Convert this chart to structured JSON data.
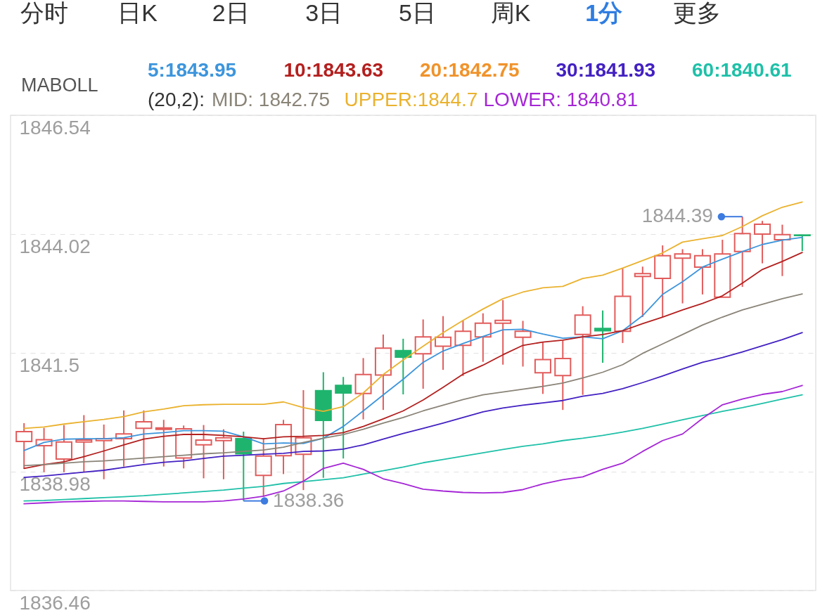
{
  "chart_data": {
    "type": "candlestick",
    "categories": [
      null,
      null,
      null,
      null,
      null,
      null,
      null,
      null,
      null,
      null,
      null,
      null,
      null,
      null,
      null,
      null,
      null,
      null,
      null,
      null,
      null,
      null,
      null,
      null,
      null,
      null,
      null,
      null,
      null,
      null,
      null,
      null,
      null,
      null,
      null,
      null,
      null,
      null,
      null,
      null
    ],
    "ohlc": [
      [
        1839.62,
        1840.01,
        1839.05,
        1839.83
      ],
      [
        1839.53,
        1839.91,
        1838.97,
        1839.66
      ],
      [
        1839.25,
        1839.97,
        1838.97,
        1839.61
      ],
      [
        1839.61,
        1840.18,
        1838.97,
        1839.65
      ],
      [
        1839.64,
        1839.98,
        1838.82,
        1839.68
      ],
      [
        1839.68,
        1840.28,
        1839.09,
        1839.78
      ],
      [
        1839.9,
        1840.28,
        1839.16,
        1840.04
      ],
      [
        1839.88,
        1840.08,
        1839.09,
        1839.91
      ],
      [
        1839.27,
        1839.96,
        1839.05,
        1839.89
      ],
      [
        1839.55,
        1839.97,
        1838.84,
        1839.65
      ],
      [
        1839.64,
        1839.88,
        1838.82,
        1839.7
      ],
      [
        1839.68,
        1839.83,
        1838.36,
        1839.36
      ],
      [
        1838.9,
        1839.69,
        1838.45,
        1839.31
      ],
      [
        1839.32,
        1840.08,
        1838.93,
        1839.98
      ],
      [
        1839.35,
        1840.71,
        1838.59,
        1839.7
      ],
      [
        1840.7,
        1841.09,
        1838.85,
        1840.07
      ],
      [
        1840.81,
        1840.99,
        1839.26,
        1840.65
      ],
      [
        1840.64,
        1841.39,
        1840.09,
        1841.04
      ],
      [
        1841.03,
        1841.89,
        1840.29,
        1841.6
      ],
      [
        1841.55,
        1841.8,
        1840.62,
        1841.41
      ],
      [
        1841.48,
        1842.21,
        1840.74,
        1841.84
      ],
      [
        1841.64,
        1842.28,
        1841.14,
        1841.83
      ],
      [
        1841.66,
        1842.19,
        1841.01,
        1841.96
      ],
      [
        1841.84,
        1842.34,
        1841.31,
        1842.13
      ],
      [
        1842.13,
        1842.62,
        1841.25,
        1842.19
      ],
      [
        1841.83,
        1842.18,
        1841.21,
        1841.96
      ],
      [
        1841.08,
        1841.73,
        1840.63,
        1841.36
      ],
      [
        1841.02,
        1841.76,
        1840.29,
        1841.38
      ],
      [
        1841.89,
        1842.49,
        1840.61,
        1842.3
      ],
      [
        1842.02,
        1842.4,
        1841.29,
        1841.97
      ],
      [
        1841.96,
        1843.29,
        1841.71,
        1842.7
      ],
      [
        1843.12,
        1843.33,
        1842.26,
        1843.18
      ],
      [
        1843.08,
        1843.78,
        1842.26,
        1843.56
      ],
      [
        1843.51,
        1843.7,
        1842.55,
        1843.6
      ],
      [
        1843.32,
        1843.7,
        1842.74,
        1843.56
      ],
      [
        1842.68,
        1843.9,
        1842.68,
        1843.6
      ],
      [
        1843.65,
        1844.39,
        1842.9,
        1844.03
      ],
      [
        1844.02,
        1844.3,
        1843.4,
        1844.23
      ],
      [
        1843.9,
        1844.22,
        1843.13,
        1844.01
      ],
      [
        1844.0,
        1844.0,
        1843.66,
        1843.99
      ]
    ],
    "colors": [
      "#e25c5c",
      "#e25c5c",
      "#e25c5c",
      "#e25c5c",
      "#e25c5c",
      "#e25c5c",
      "#e25c5c",
      "#e25c5c",
      "#e25c5c",
      "#e25c5c",
      "#e25c5c",
      "#1fb46e",
      "#e25c5c",
      "#e25c5c",
      "#e25c5c",
      "#1fb46e",
      "#1fb46e",
      "#e25c5c",
      "#e25c5c",
      "#1fb46e",
      "#e25c5c",
      "#e25c5c",
      "#e25c5c",
      "#e25c5c",
      "#e25c5c",
      "#e25c5c",
      "#e25c5c",
      "#e25c5c",
      "#e25c5c",
      "#1fb46e",
      "#e25c5c",
      "#e25c5c",
      "#e25c5c",
      "#e25c5c",
      "#e25c5c",
      "#e25c5c",
      "#e25c5c",
      "#e25c5c",
      "#e25c5c",
      "#1fb46e"
    ],
    "series": [
      {
        "name": "5:1843.95",
        "type": "line",
        "color": "#3d95dc",
        "values": [
          1839.43,
          1839.6,
          1839.67,
          1839.68,
          1839.68,
          1839.7,
          1839.78,
          1839.81,
          1839.85,
          1839.85,
          1839.84,
          1839.72,
          1839.57,
          1839.59,
          1839.58,
          1839.69,
          1839.94,
          1840.27,
          1840.61,
          1840.94,
          1841.3,
          1841.54,
          1841.7,
          1841.85,
          1841.99,
          1842.0,
          1841.9,
          1841.81,
          1841.84,
          1841.8,
          1841.97,
          1842.29,
          1842.74,
          1843.01,
          1843.32,
          1843.49,
          1843.65,
          1843.8,
          1843.89,
          1843.95
        ]
      },
      {
        "name": "10:1843.63",
        "type": "line",
        "color": "#b3201f",
        "values": [
          1839.05,
          1839.13,
          1839.19,
          1839.3,
          1839.42,
          1839.55,
          1839.67,
          1839.73,
          1839.77,
          1839.77,
          1839.75,
          1839.72,
          1839.68,
          1839.72,
          1839.73,
          1839.75,
          1839.81,
          1839.94,
          1840.1,
          1840.27,
          1840.5,
          1840.77,
          1841.05,
          1841.24,
          1841.46,
          1841.66,
          1841.73,
          1841.77,
          1841.84,
          1841.89,
          1841.97,
          1842.12,
          1842.26,
          1842.41,
          1842.55,
          1842.71,
          1842.98,
          1843.27,
          1843.44,
          1843.63
        ]
      },
      {
        "name": "20:1842.75",
        "type": "line",
        "color": "#f0932b",
        "values": [
          null,
          null,
          null,
          null,
          null,
          null,
          null,
          null,
          null,
          null,
          null,
          null,
          null,
          null,
          null,
          null,
          null,
          null,
          null,
          null,
          null,
          null,
          null,
          null,
          null,
          null,
          null,
          null,
          null,
          null,
          null,
          null,
          null,
          null,
          null,
          null,
          null,
          null,
          null,
          null
        ]
      },
      {
        "name": "30:1841.93",
        "type": "line",
        "color": "#4321c2",
        "values": [
          1838.86,
          1838.89,
          1838.93,
          1838.97,
          1839.01,
          1839.07,
          1839.13,
          1839.18,
          1839.21,
          1839.26,
          1839.31,
          1839.33,
          1839.35,
          1839.37,
          1839.41,
          1839.42,
          1839.46,
          1839.55,
          1839.67,
          1839.79,
          1839.9,
          1840.01,
          1840.13,
          1840.25,
          1840.33,
          1840.39,
          1840.44,
          1840.49,
          1840.58,
          1840.64,
          1840.74,
          1840.87,
          1841.01,
          1841.16,
          1841.3,
          1841.4,
          1841.52,
          1841.65,
          1841.78,
          1841.93
        ]
      },
      {
        "name": "60:1840.61",
        "type": "line",
        "color": "#1fc0a8",
        "values": [
          1838.36,
          1838.37,
          1838.39,
          1838.41,
          1838.43,
          1838.45,
          1838.47,
          1838.5,
          1838.53,
          1838.56,
          1838.59,
          1838.63,
          1838.67,
          1838.73,
          1838.77,
          1838.81,
          1838.85,
          1838.93,
          1839.0,
          1839.08,
          1839.17,
          1839.24,
          1839.31,
          1839.38,
          1839.45,
          1839.52,
          1839.57,
          1839.64,
          1839.69,
          1839.75,
          1839.82,
          1839.9,
          1839.99,
          1840.08,
          1840.17,
          1840.26,
          1840.34,
          1840.43,
          1840.52,
          1840.61
        ]
      },
      {
        "name": "MID: 1842.75",
        "type": "line",
        "color": "#8a8478",
        "values": [
          1839.11,
          1839.13,
          1839.16,
          1839.19,
          1839.21,
          1839.24,
          1839.27,
          1839.3,
          1839.33,
          1839.36,
          1839.38,
          1839.41,
          1839.44,
          1839.5,
          1839.6,
          1839.69,
          1839.77,
          1839.88,
          1840.01,
          1840.13,
          1840.27,
          1840.39,
          1840.51,
          1840.61,
          1840.67,
          1840.73,
          1840.79,
          1840.86,
          1840.97,
          1841.09,
          1841.25,
          1841.49,
          1841.69,
          1841.89,
          1842.09,
          1842.26,
          1842.41,
          1842.53,
          1842.65,
          1842.75
        ]
      },
      {
        "name": "UPPER:1844.7",
        "type": "line",
        "color": "#eab22e",
        "values": [
          1839.9,
          1839.93,
          1839.99,
          1840.04,
          1840.09,
          1840.15,
          1840.25,
          1840.31,
          1840.38,
          1840.4,
          1840.41,
          1840.41,
          1840.41,
          1840.46,
          1840.34,
          1840.26,
          1840.36,
          1840.65,
          1841.04,
          1841.35,
          1841.64,
          1841.93,
          1842.19,
          1842.43,
          1842.65,
          1842.79,
          1842.88,
          1842.91,
          1843.08,
          1843.15,
          1843.3,
          1843.46,
          1843.62,
          1843.85,
          1843.92,
          1843.99,
          1844.18,
          1844.41,
          1844.59,
          1844.7
        ]
      },
      {
        "name": "LOWER: 1840.81",
        "type": "line",
        "color": "#a526d6",
        "values": [
          1838.3,
          1838.32,
          1838.34,
          1838.35,
          1838.36,
          1838.36,
          1838.35,
          1838.34,
          1838.34,
          1838.34,
          1838.36,
          1838.4,
          1838.46,
          1838.57,
          1838.78,
          1839.05,
          1839.16,
          1839.03,
          1838.83,
          1838.73,
          1838.61,
          1838.57,
          1838.54,
          1838.53,
          1838.54,
          1838.6,
          1838.72,
          1838.81,
          1838.87,
          1839.03,
          1839.16,
          1839.41,
          1839.64,
          1839.78,
          1840.11,
          1840.4,
          1840.52,
          1840.62,
          1840.68,
          1840.81
        ]
      }
    ],
    "ylim": [
      1836.46,
      1846.54
    ],
    "yticks": [
      1836.46,
      1838.98,
      1841.5,
      1844.02,
      1846.54
    ],
    "grid": "y",
    "legend": "top",
    "tick_labels": "y",
    "annotations": [
      "分时",
      "日K",
      "2日",
      "3日",
      "5日",
      "周K",
      "1分",
      "更多",
      "MABOLL",
      "(20,2):",
      "1844.39",
      "1838.36"
    ]
  }
}
